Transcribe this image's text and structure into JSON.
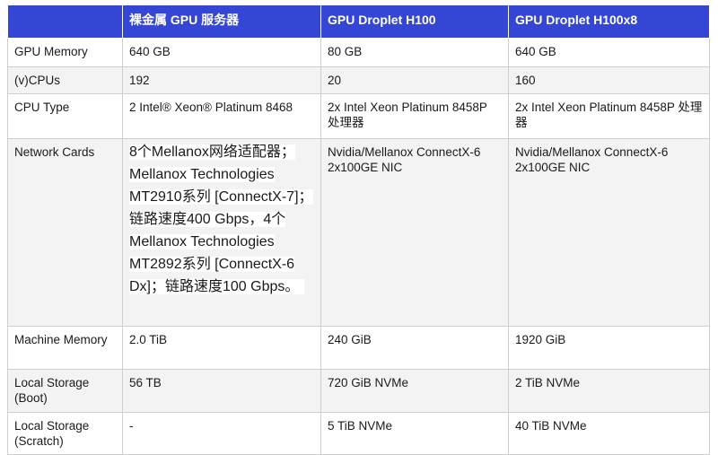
{
  "header": [
    "",
    "裸金属 GPU 服务器",
    "GPU Droplet H100",
    "GPU Droplet H100x8"
  ],
  "rows": [
    {
      "label": "GPU Memory",
      "values": [
        "640 GB",
        "80 GB",
        "640 GB"
      ]
    },
    {
      "label": "(v)CPUs",
      "values": [
        "192",
        "20",
        "160"
      ]
    },
    {
      "label": "CPU Type",
      "values": [
        "2 Intel® Xeon® Platinum 8468",
        "2x Intel Xeon Platinum 8458P 处理器",
        "2x Intel Xeon Platinum 8458P 处理器"
      ]
    },
    {
      "label": "Network Cards",
      "values": [
        "8个Mellanox网络适配器；Mellanox Technologies MT2910系列 [ConnectX-7]；链路速度400 Gbps，4个Mellanox Technologies MT2892系列 [ConnectX-6 Dx]；链路速度100 Gbps。",
        "Nvidia/Mellanox ConnectX-6 2x100GE NIC",
        "Nvidia/Mellanox ConnectX-6 2x100GE NIC"
      ]
    },
    {
      "label": "Machine Memory",
      "values": [
        "2.0 TiB",
        "240 GiB",
        "1920 GiB"
      ]
    },
    {
      "label": "Local Storage (Boot)",
      "values": [
        "56 TB",
        "720 GiB NVMe",
        "2 TiB NVMe"
      ]
    },
    {
      "label": "Local Storage (Scratch)",
      "values": [
        "-",
        "5 TiB NVMe",
        "40 TiB NVMe"
      ]
    }
  ],
  "colors": {
    "header_bg": "#3446d3",
    "header_text": "#ffffff",
    "stripe": "#f3f3f3"
  }
}
